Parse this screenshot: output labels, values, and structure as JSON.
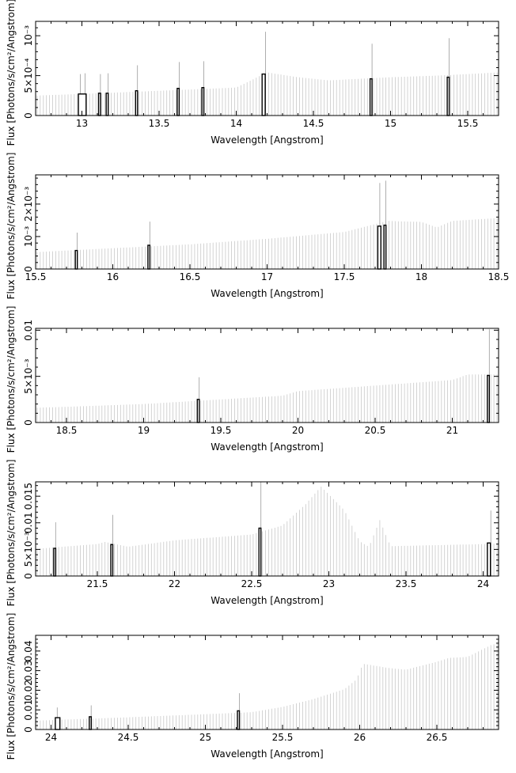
{
  "chart_data": [
    {
      "type": "bar",
      "xlabel": "Wavelength [Angstrom]",
      "ylabel": "Flux [Photons/s/cm²/Angstrom]",
      "xlim": [
        12.7,
        15.7
      ],
      "ylim": [
        0,
        0.00118
      ],
      "xticks": [
        13,
        13.5,
        14,
        14.5,
        15,
        15.5
      ],
      "xtick_labels": [
        "13",
        "13.5",
        "14",
        "14.5",
        "15",
        "15.5"
      ],
      "yticks": [
        0,
        0.0005,
        0.001
      ],
      "ytick_labels": [
        "0",
        "5×10⁻⁴",
        "10⁻³"
      ],
      "continuum": [
        [
          12.7,
          0.00025
        ],
        [
          13.0,
          0.00027
        ],
        [
          13.5,
          0.00031
        ],
        [
          14.0,
          0.00035
        ],
        [
          14.2,
          0.00054
        ],
        [
          14.4,
          0.00048
        ],
        [
          14.6,
          0.00044
        ],
        [
          14.8,
          0.00046
        ],
        [
          15.0,
          0.00048
        ],
        [
          15.3,
          0.0005
        ],
        [
          15.7,
          0.00054
        ]
      ],
      "emission_lines": [
        [
          12.99,
          0.00052
        ],
        [
          13.02,
          0.00053
        ],
        [
          13.12,
          0.00052
        ],
        [
          13.17,
          0.00053
        ],
        [
          13.36,
          0.00063
        ],
        [
          13.63,
          0.00067
        ],
        [
          13.79,
          0.00068
        ],
        [
          14.19,
          0.00105
        ],
        [
          14.88,
          0.0009
        ],
        [
          15.38,
          0.00097
        ]
      ],
      "marked_bins": [
        [
          12.98,
          13.03,
          0.00027
        ],
        [
          13.11,
          13.12,
          0.00028
        ],
        [
          13.16,
          13.17,
          0.00028
        ],
        [
          13.35,
          13.36,
          0.00031
        ],
        [
          13.62,
          13.63,
          0.00034
        ],
        [
          13.78,
          13.79,
          0.00035
        ],
        [
          14.17,
          14.19,
          0.00052
        ],
        [
          14.87,
          14.88,
          0.00046
        ],
        [
          15.37,
          15.38,
          0.00048
        ]
      ]
    },
    {
      "type": "bar",
      "xlabel": "Wavelength [Angstrom]",
      "ylabel": "Flux [Photons/s/cm²/Angstrom]",
      "xlim": [
        15.5,
        18.5
      ],
      "ylim": [
        0,
        0.0029
      ],
      "xticks": [
        15.5,
        16,
        16.5,
        17,
        17.5,
        18,
        18.5
      ],
      "xtick_labels": [
        "15.5",
        "16",
        "16.5",
        "17",
        "17.5",
        "18",
        "18.5"
      ],
      "yticks": [
        0,
        0.001,
        0.002
      ],
      "ytick_labels": [
        "0",
        "10⁻³",
        "2×10⁻³"
      ],
      "continuum": [
        [
          15.5,
          0.00052
        ],
        [
          16.0,
          0.00064
        ],
        [
          16.5,
          0.00076
        ],
        [
          17.0,
          0.00093
        ],
        [
          17.5,
          0.00114
        ],
        [
          17.78,
          0.00148
        ],
        [
          18.0,
          0.00145
        ],
        [
          18.1,
          0.00128
        ],
        [
          18.2,
          0.00148
        ],
        [
          18.5,
          0.00157
        ]
      ],
      "emission_lines": [
        [
          15.77,
          0.00112
        ],
        [
          16.24,
          0.00146
        ],
        [
          17.73,
          0.00265
        ],
        [
          17.77,
          0.00272
        ]
      ],
      "marked_bins": [
        [
          15.76,
          15.77,
          0.00057
        ],
        [
          16.23,
          16.24,
          0.00073
        ],
        [
          17.72,
          17.74,
          0.00132
        ],
        [
          17.76,
          17.77,
          0.00135
        ]
      ]
    },
    {
      "type": "bar",
      "xlabel": "Wavelength [Angstrom]",
      "ylabel": "Flux [Photons/s/cm²/Angstrom]",
      "xlim": [
        18.3,
        21.3
      ],
      "ylim": [
        0,
        0.0102
      ],
      "xticks": [
        18.5,
        19,
        19.5,
        20,
        20.5,
        21
      ],
      "xtick_labels": [
        "18.5",
        "19",
        "19.5",
        "20",
        "20.5",
        "21"
      ],
      "yticks": [
        0,
        0.005,
        0.01
      ],
      "ytick_labels": [
        "0",
        "5×10⁻³",
        "0.01"
      ],
      "continuum": [
        [
          18.3,
          0.0016
        ],
        [
          18.5,
          0.0017
        ],
        [
          19.0,
          0.002
        ],
        [
          19.5,
          0.0025
        ],
        [
          19.9,
          0.0029
        ],
        [
          20.0,
          0.0034
        ],
        [
          20.5,
          0.004
        ],
        [
          21.0,
          0.0046
        ],
        [
          21.1,
          0.0052
        ],
        [
          21.3,
          0.0052
        ]
      ],
      "emission_lines": [
        [
          19.36,
          0.0049
        ],
        [
          21.24,
          0.0101
        ]
      ],
      "marked_bins": [
        [
          19.35,
          19.36,
          0.0025
        ],
        [
          21.23,
          21.24,
          0.0051
        ]
      ]
    },
    {
      "type": "bar",
      "xlabel": "Wavelength [Angstrom]",
      "ylabel": "Flux [Photons/s/cm²/Angstrom]",
      "xlim": [
        21.1,
        24.1
      ],
      "ylim": [
        0,
        0.0177
      ],
      "xticks": [
        21.5,
        22,
        22.5,
        23,
        23.5,
        24
      ],
      "xtick_labels": [
        "21.5",
        "22",
        "22.5",
        "23",
        "23.5",
        "24"
      ],
      "yticks": [
        0,
        0.005,
        0.01,
        0.015
      ],
      "ytick_labels": [
        "0",
        "5×10⁻³",
        "0.01",
        "0.015"
      ],
      "continuum": [
        [
          21.1,
          0.0051
        ],
        [
          21.5,
          0.006
        ],
        [
          21.55,
          0.0064
        ],
        [
          21.7,
          0.0055
        ],
        [
          22.0,
          0.0067
        ],
        [
          22.5,
          0.0078
        ],
        [
          22.7,
          0.0095
        ],
        [
          22.85,
          0.0135
        ],
        [
          22.95,
          0.0168
        ],
        [
          23.1,
          0.0124
        ],
        [
          23.2,
          0.0065
        ],
        [
          23.26,
          0.0055
        ],
        [
          23.33,
          0.0105
        ],
        [
          23.4,
          0.0056
        ],
        [
          24.0,
          0.006
        ],
        [
          24.1,
          0.0061
        ]
      ],
      "emission_lines": [
        [
          21.23,
          0.0101
        ],
        [
          21.6,
          0.0115
        ],
        [
          22.56,
          0.0178
        ],
        [
          24.05,
          0.0123
        ]
      ],
      "marked_bins": [
        [
          21.22,
          21.23,
          0.0052
        ],
        [
          21.59,
          21.6,
          0.0059
        ],
        [
          22.55,
          22.56,
          0.009
        ],
        [
          24.03,
          24.05,
          0.0062
        ]
      ]
    },
    {
      "type": "bar",
      "xlabel": "Wavelength [Angstrom]",
      "ylabel": "Flux [Photons/s/cm²/Angstrom]",
      "xlim": [
        23.9,
        26.9
      ],
      "ylim": [
        0,
        0.048
      ],
      "xticks": [
        24,
        24.5,
        25,
        25.5,
        26,
        26.5
      ],
      "xtick_labels": [
        "24",
        "24.5",
        "25",
        "25.5",
        "26",
        "26.5"
      ],
      "yticks": [
        0,
        0.01,
        0.02,
        0.03,
        0.04
      ],
      "ytick_labels": [
        "0",
        "0.01",
        "0.02",
        "0.03",
        "0.04"
      ],
      "continuum": [
        [
          23.9,
          0.0045
        ],
        [
          24.5,
          0.0062
        ],
        [
          25.0,
          0.0078
        ],
        [
          25.3,
          0.0088
        ],
        [
          25.5,
          0.0115
        ],
        [
          25.7,
          0.0155
        ],
        [
          25.9,
          0.0205
        ],
        [
          25.98,
          0.0255
        ],
        [
          26.02,
          0.0335
        ],
        [
          26.2,
          0.0312
        ],
        [
          26.3,
          0.0305
        ],
        [
          26.5,
          0.0345
        ],
        [
          26.58,
          0.0365
        ],
        [
          26.7,
          0.037
        ],
        [
          26.85,
          0.043
        ],
        [
          26.9,
          0.044
        ]
      ],
      "emission_lines": [
        [
          24.04,
          0.0112
        ],
        [
          24.26,
          0.0123
        ],
        [
          25.22,
          0.0185
        ]
      ],
      "marked_bins": [
        [
          24.03,
          24.06,
          0.006
        ],
        [
          24.25,
          24.26,
          0.0065
        ],
        [
          25.21,
          25.22,
          0.0095
        ]
      ]
    }
  ]
}
